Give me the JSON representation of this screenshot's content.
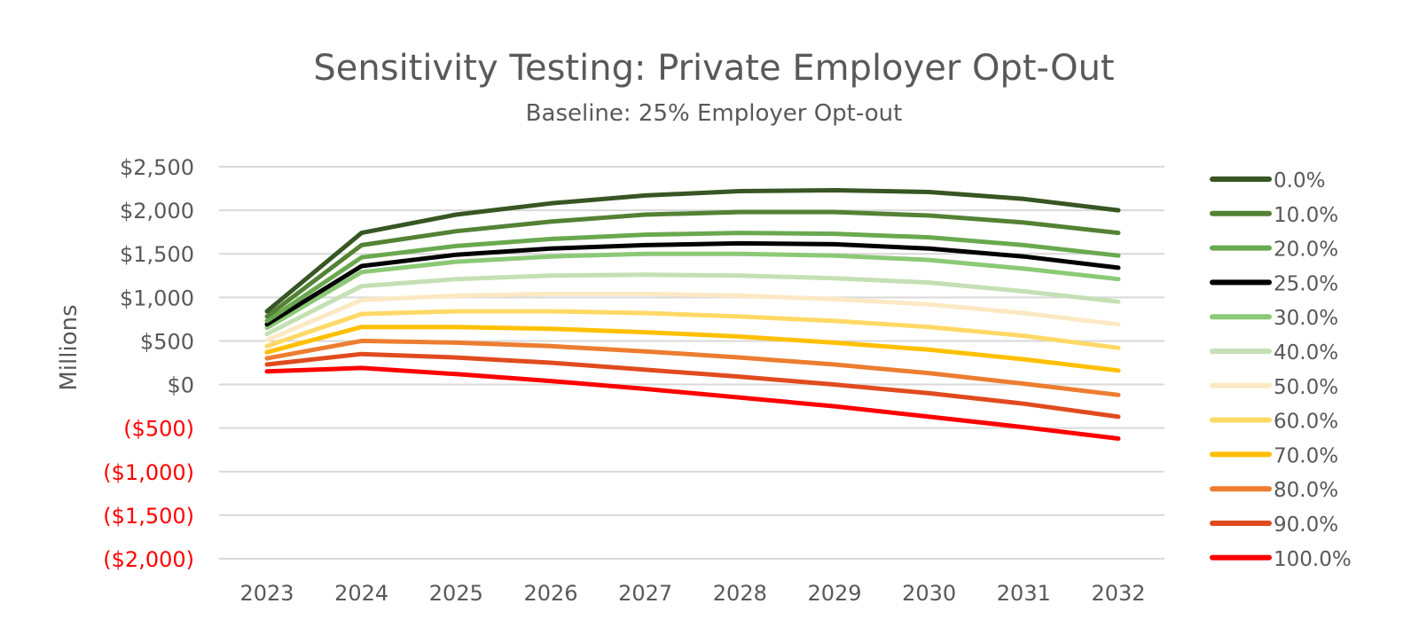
{
  "chart_data": {
    "type": "line",
    "title": "Sensitivity Testing: Private Employer Opt-Out",
    "subtitle": "Baseline: 25% Employer Opt-out",
    "xlabel": "",
    "ylabel": "Millions",
    "x": [
      "2023",
      "2024",
      "2025",
      "2026",
      "2027",
      "2028",
      "2029",
      "2030",
      "2031",
      "2032"
    ],
    "ylim": [
      -2000,
      2500
    ],
    "yticks": [
      {
        "value": 2500,
        "label": "$2,500",
        "negative": false
      },
      {
        "value": 2000,
        "label": "$2,000",
        "negative": false
      },
      {
        "value": 1500,
        "label": "$1,500",
        "negative": false
      },
      {
        "value": 1000,
        "label": "$1,000",
        "negative": false
      },
      {
        "value": 500,
        "label": "$500",
        "negative": false
      },
      {
        "value": 0,
        "label": "$0",
        "negative": false
      },
      {
        "value": -500,
        "label": "($500)",
        "negative": true
      },
      {
        "value": -1000,
        "label": "($1,000)",
        "negative": true
      },
      {
        "value": -1500,
        "label": "($1,500)",
        "negative": true
      },
      {
        "value": -2000,
        "label": "($2,000)",
        "negative": true
      }
    ],
    "grid": true,
    "legend_position": "right",
    "series": [
      {
        "name": "0.0%",
        "color": "#375623",
        "values": [
          840,
          1740,
          1950,
          2080,
          2170,
          2220,
          2230,
          2210,
          2130,
          2000
        ]
      },
      {
        "name": "10.0%",
        "color": "#548235",
        "values": [
          780,
          1600,
          1760,
          1870,
          1950,
          1980,
          1980,
          1940,
          1860,
          1740
        ]
      },
      {
        "name": "20.0%",
        "color": "#6aa84f",
        "values": [
          730,
          1460,
          1590,
          1670,
          1720,
          1740,
          1730,
          1690,
          1600,
          1480
        ]
      },
      {
        "name": "25.0%",
        "color": "#000000",
        "values": [
          690,
          1360,
          1490,
          1560,
          1600,
          1620,
          1610,
          1560,
          1470,
          1340
        ]
      },
      {
        "name": "30.0%",
        "color": "#8cc976",
        "values": [
          650,
          1290,
          1410,
          1470,
          1500,
          1500,
          1480,
          1430,
          1330,
          1210
        ]
      },
      {
        "name": "40.0%",
        "color": "#c5e0b4",
        "values": [
          580,
          1130,
          1210,
          1250,
          1260,
          1250,
          1220,
          1170,
          1070,
          950
        ]
      },
      {
        "name": "50.0%",
        "color": "#fce9c4",
        "values": [
          510,
          970,
          1020,
          1040,
          1040,
          1020,
          980,
          920,
          820,
          690
        ]
      },
      {
        "name": "60.0%",
        "color": "#ffd966",
        "values": [
          440,
          810,
          840,
          840,
          820,
          780,
          730,
          660,
          560,
          420
        ]
      },
      {
        "name": "70.0%",
        "color": "#ffc000",
        "values": [
          370,
          660,
          660,
          640,
          600,
          550,
          480,
          400,
          290,
          160
        ]
      },
      {
        "name": "80.0%",
        "color": "#ed7d31",
        "values": [
          300,
          500,
          480,
          440,
          380,
          310,
          230,
          130,
          10,
          -120
        ]
      },
      {
        "name": "90.0%",
        "color": "#e04b1e",
        "values": [
          230,
          350,
          310,
          250,
          170,
          90,
          0,
          -100,
          -220,
          -370
        ]
      },
      {
        "name": "100.0%",
        "color": "#ff0000",
        "values": [
          150,
          190,
          120,
          40,
          -50,
          -150,
          -250,
          -370,
          -490,
          -620
        ]
      }
    ]
  }
}
